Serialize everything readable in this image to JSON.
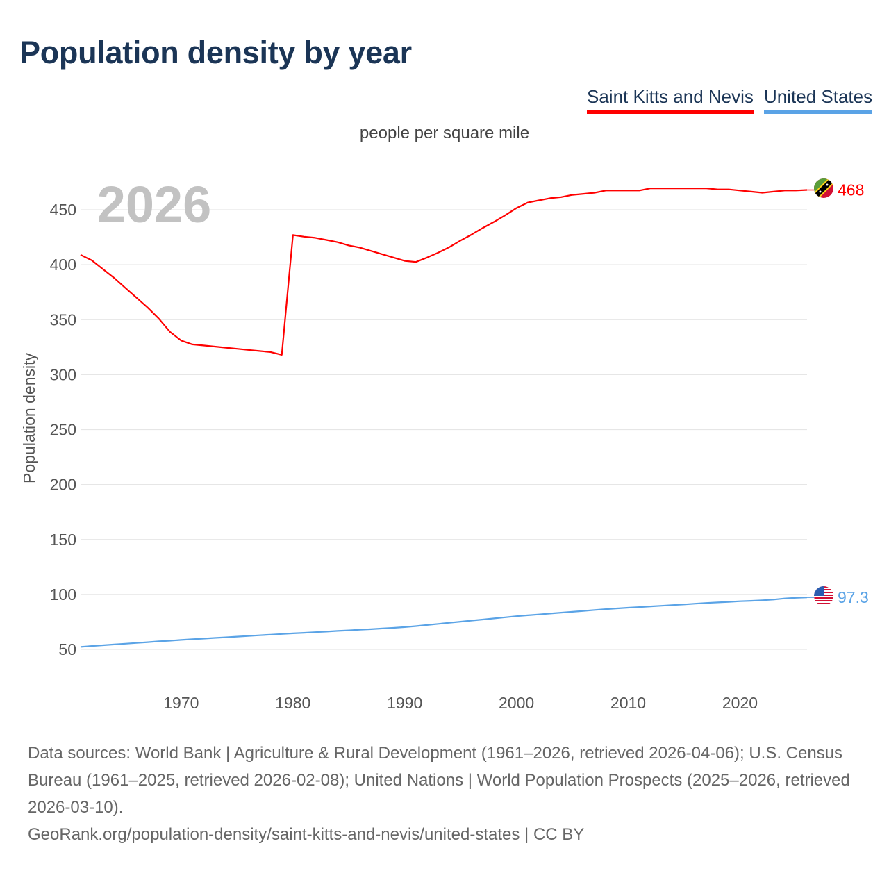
{
  "header": {
    "title": "Population density by year",
    "unit": "people per square mile"
  },
  "legend": [
    {
      "label": "Saint Kitts and Nevis",
      "color": "#ff0000"
    },
    {
      "label": "United States",
      "color": "#5aa3e6"
    }
  ],
  "footer": {
    "sources": "Data sources: World Bank | Agriculture & Rural Development (1961–2026, retrieved 2026-04-06); U.S. Census Bureau (1961–2025, retrieved 2026-02-08); United Nations | World Population Prospects (2025–2026, retrieved 2026-03-10).",
    "credit": "GeoRank.org/population-density/saint-kitts-and-nevis/united-states | CC BY"
  },
  "chart_data": {
    "type": "line",
    "title": "Population density by year",
    "subtitle": "people per square mile",
    "xlabel": "",
    "ylabel": "Population density",
    "year_watermark": "2026",
    "xlim": [
      1961,
      2026
    ],
    "ylim": [
      50,
      450
    ],
    "xticks": [
      1970,
      1980,
      1990,
      2000,
      2010,
      2020
    ],
    "yticks": [
      50,
      100,
      150,
      200,
      250,
      300,
      350,
      400,
      450
    ],
    "grid": true,
    "legend_position": "top-right",
    "x": [
      1961,
      1962,
      1963,
      1964,
      1965,
      1966,
      1967,
      1968,
      1969,
      1970,
      1971,
      1972,
      1973,
      1974,
      1975,
      1976,
      1977,
      1978,
      1979,
      1980,
      1981,
      1982,
      1983,
      1984,
      1985,
      1986,
      1987,
      1988,
      1989,
      1990,
      1991,
      1992,
      1993,
      1994,
      1995,
      1996,
      1997,
      1998,
      1999,
      2000,
      2001,
      2002,
      2003,
      2004,
      2005,
      2006,
      2007,
      2008,
      2009,
      2010,
      2011,
      2012,
      2013,
      2014,
      2015,
      2016,
      2017,
      2018,
      2019,
      2020,
      2021,
      2022,
      2023,
      2024,
      2025,
      2026
    ],
    "series": [
      {
        "name": "Saint Kitts and Nevis",
        "color": "#ff0000",
        "end_label": "468",
        "values": [
          409,
          404,
          396,
          388,
          379,
          370,
          361,
          351,
          339,
          331,
          327.5,
          326.5,
          325.5,
          324.5,
          323.5,
          322.5,
          321.5,
          320.5,
          318,
          427,
          425.5,
          424.5,
          422.5,
          420.5,
          417.5,
          415.5,
          412.5,
          409.5,
          406.5,
          403.5,
          402.5,
          406.5,
          411,
          416,
          422,
          427.5,
          433.5,
          439,
          445,
          451.5,
          456.5,
          458.5,
          460.5,
          461.5,
          463.5,
          464.5,
          465.5,
          467.5,
          467.5,
          467.5,
          467.5,
          469.5,
          469.5,
          469.5,
          469.5,
          469.5,
          469.5,
          468.5,
          468.5,
          467.5,
          466.5,
          465.5,
          466.5,
          467.5,
          467.5,
          468
        ]
      },
      {
        "name": "United States",
        "color": "#5aa3e6",
        "end_label": "97.3",
        "values": [
          52.3,
          53.1,
          53.8,
          54.5,
          55.2,
          55.9,
          56.6,
          57.3,
          57.9,
          58.6,
          59.2,
          59.8,
          60.4,
          61,
          61.6,
          62.2,
          62.8,
          63.4,
          64,
          64.6,
          65.1,
          65.7,
          66.2,
          66.8,
          67.3,
          67.9,
          68.4,
          69,
          69.6,
          70.3,
          71.2,
          72.2,
          73.2,
          74.2,
          75.2,
          76.2,
          77.2,
          78.2,
          79.2,
          80.2,
          81,
          81.8,
          82.6,
          83.4,
          84.2,
          85,
          85.8,
          86.6,
          87.3,
          87.9,
          88.5,
          89.1,
          89.7,
          90.3,
          90.9,
          91.6,
          92.2,
          92.7,
          93.2,
          93.8,
          94.2,
          94.7,
          95.3,
          96.3,
          96.9,
          97.3
        ]
      }
    ]
  }
}
